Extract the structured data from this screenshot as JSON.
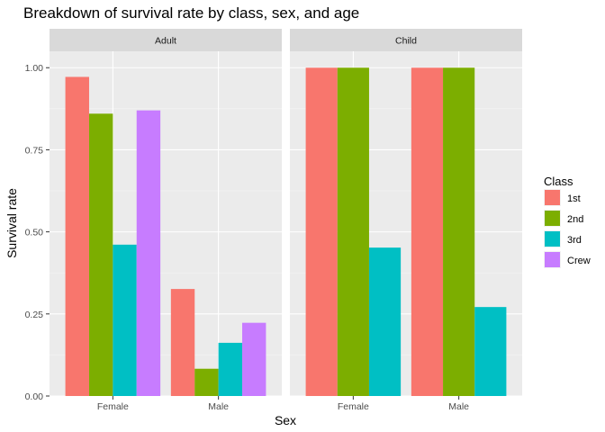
{
  "chart_data": {
    "type": "bar",
    "title": "Breakdown of survival rate by class, sex, and age",
    "xlabel": "Sex",
    "ylabel": "Survival rate",
    "ylim": [
      0,
      1.05
    ],
    "y_ticks": [
      "0.00",
      "0.25",
      "0.50",
      "0.75",
      "1.00"
    ],
    "y_tick_values": [
      0,
      0.25,
      0.5,
      0.75,
      1.0
    ],
    "categories": [
      "Female",
      "Male"
    ],
    "grid": true,
    "legend": {
      "title": "Class",
      "placement": "right",
      "entries": [
        "1st",
        "2nd",
        "3rd",
        "Crew"
      ]
    },
    "colors": {
      "1st": "#F8766D",
      "2nd": "#7CAE00",
      "3rd": "#00BFC4",
      "Crew": "#C77CFF"
    },
    "panels": [
      {
        "label": "Adult",
        "series": [
          {
            "name": "1st",
            "values": [
              0.972,
              0.326
            ]
          },
          {
            "name": "2nd",
            "values": [
              0.86,
              0.083
            ]
          },
          {
            "name": "3rd",
            "values": [
              0.461,
              0.162
            ]
          },
          {
            "name": "Crew",
            "values": [
              0.87,
              0.223
            ]
          }
        ]
      },
      {
        "label": "Child",
        "series": [
          {
            "name": "1st",
            "values": [
              1.0,
              1.0
            ]
          },
          {
            "name": "2nd",
            "values": [
              1.0,
              1.0
            ]
          },
          {
            "name": "3rd",
            "values": [
              0.452,
              0.271
            ]
          }
        ]
      }
    ]
  }
}
